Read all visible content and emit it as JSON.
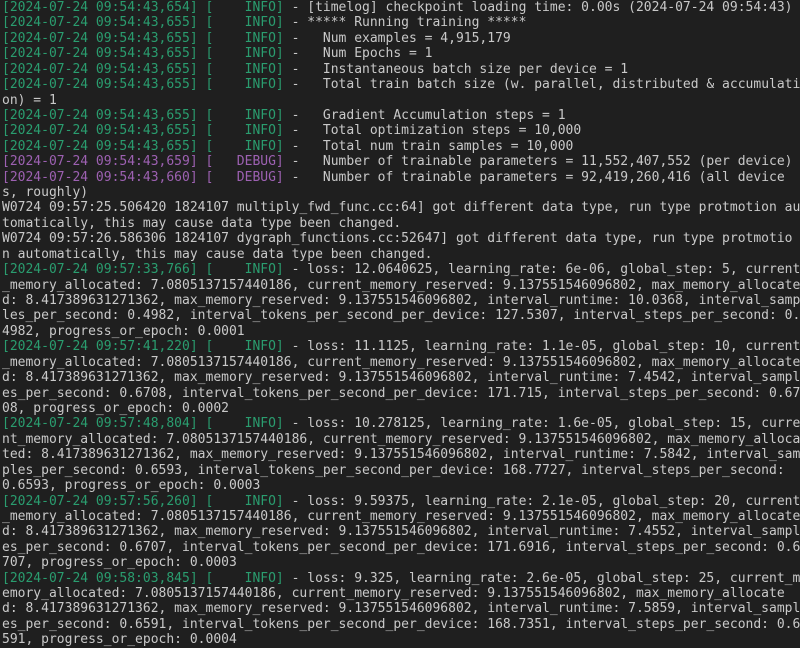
{
  "terminal": {
    "columns": 102,
    "colors": {
      "background": "#1f1f1f",
      "text": "#c9c9c9",
      "info": "#2a9d6f",
      "debug": "#9d61b2"
    },
    "lines": [
      {
        "type": "log",
        "level": "INFO",
        "timestamp": "2024-07-24 09:54:43,654",
        "message": "[timelog] checkpoint loading time: 0.00s (2024-07-24 09:54:43)"
      },
      {
        "type": "log",
        "level": "INFO",
        "timestamp": "2024-07-24 09:54:43,655",
        "message": "***** Running training *****"
      },
      {
        "type": "log",
        "level": "INFO",
        "timestamp": "2024-07-24 09:54:43,655",
        "message": "  Num examples = 4,915,179"
      },
      {
        "type": "log",
        "level": "INFO",
        "timestamp": "2024-07-24 09:54:43,655",
        "message": "  Num Epochs = 1"
      },
      {
        "type": "log",
        "level": "INFO",
        "timestamp": "2024-07-24 09:54:43,655",
        "message": "  Instantaneous batch size per device = 1"
      },
      {
        "type": "log",
        "level": "INFO",
        "timestamp": "2024-07-24 09:54:43,655",
        "message": "  Total train batch size (w. parallel, distributed & accumulation) = 1"
      },
      {
        "type": "log",
        "level": "INFO",
        "timestamp": "2024-07-24 09:54:43,655",
        "message": "  Gradient Accumulation steps = 1"
      },
      {
        "type": "log",
        "level": "INFO",
        "timestamp": "2024-07-24 09:54:43,655",
        "message": "  Total optimization steps = 10,000"
      },
      {
        "type": "log",
        "level": "INFO",
        "timestamp": "2024-07-24 09:54:43,655",
        "message": "  Total num train samples = 10,000"
      },
      {
        "type": "log",
        "level": "DEBUG",
        "timestamp": "2024-07-24 09:54:43,659",
        "message": "  Number of trainable parameters = 11,552,407,552 (per device)"
      },
      {
        "type": "log",
        "level": "DEBUG",
        "timestamp": "2024-07-24 09:54:43,660",
        "message": "  Number of trainable parameters = 92,419,260,416 (all devices, roughly)"
      },
      {
        "type": "plain",
        "message": "W0724 09:57:25.506420 1824107 multiply_fwd_func.cc:64] got different data type, run type protmotion automatically, this may cause data type been changed."
      },
      {
        "type": "plain",
        "message": "W0724 09:57:26.586306 1824107 dygraph_functions.cc:52647] got different data type, run type protmotion automatically, this may cause data type been changed."
      },
      {
        "type": "log",
        "level": "INFO",
        "timestamp": "2024-07-24 09:57:33,766",
        "message": "loss: 12.0640625, learning_rate: 6e-06, global_step: 5, current_memory_allocated: 7.0805137157440186, current_memory_reserved: 9.137551546096802, max_memory_allocated: 8.417389631271362, max_memory_reserved: 9.137551546096802, interval_runtime: 10.0368, interval_samples_per_second: 0.4982, interval_tokens_per_second_per_device: 127.5307, interval_steps_per_second: 0.4982, progress_or_epoch: 0.0001"
      },
      {
        "type": "log",
        "level": "INFO",
        "timestamp": "2024-07-24 09:57:41,220",
        "message": "loss: 11.1125, learning_rate: 1.1e-05, global_step: 10, current_memory_allocated: 7.0805137157440186, current_memory_reserved: 9.137551546096802, max_memory_allocated: 8.417389631271362, max_memory_reserved: 9.137551546096802, interval_runtime: 7.4542, interval_samples_per_second: 0.6708, interval_tokens_per_second_per_device: 171.715, interval_steps_per_second: 0.6708, progress_or_epoch: 0.0002"
      },
      {
        "type": "log",
        "level": "INFO",
        "timestamp": "2024-07-24 09:57:48,804",
        "message": "loss: 10.278125, learning_rate: 1.6e-05, global_step: 15, current_memory_allocated: 7.0805137157440186, current_memory_reserved: 9.137551546096802, max_memory_allocated: 8.417389631271362, max_memory_reserved: 9.137551546096802, interval_runtime: 7.5842, interval_samples_per_second: 0.6593, interval_tokens_per_second_per_device: 168.7727, interval_steps_per_second: 0.6593, progress_or_epoch: 0.0003"
      },
      {
        "type": "log",
        "level": "INFO",
        "timestamp": "2024-07-24 09:57:56,260",
        "message": "loss: 9.59375, learning_rate: 2.1e-05, global_step: 20, current_memory_allocated: 7.0805137157440186, current_memory_reserved: 9.137551546096802, max_memory_allocated: 8.417389631271362, max_memory_reserved: 9.137551546096802, interval_runtime: 7.4552, interval_samples_per_second: 0.6707, interval_tokens_per_second_per_device: 171.6916, interval_steps_per_second: 0.6707, progress_or_epoch: 0.0003"
      },
      {
        "type": "log",
        "level": "INFO",
        "timestamp": "2024-07-24 09:58:03,845",
        "message": "loss: 9.325, learning_rate: 2.6e-05, global_step: 25, current_memory_allocated: 7.0805137157440186, current_memory_reserved: 9.137551546096802, max_memory_allocated: 8.417389631271362, max_memory_reserved: 9.137551546096802, interval_runtime: 7.5859, interval_samples_per_second: 0.6591, interval_tokens_per_second_per_device: 168.7351, interval_steps_per_second: 0.6591, progress_or_epoch: 0.0004"
      }
    ]
  }
}
